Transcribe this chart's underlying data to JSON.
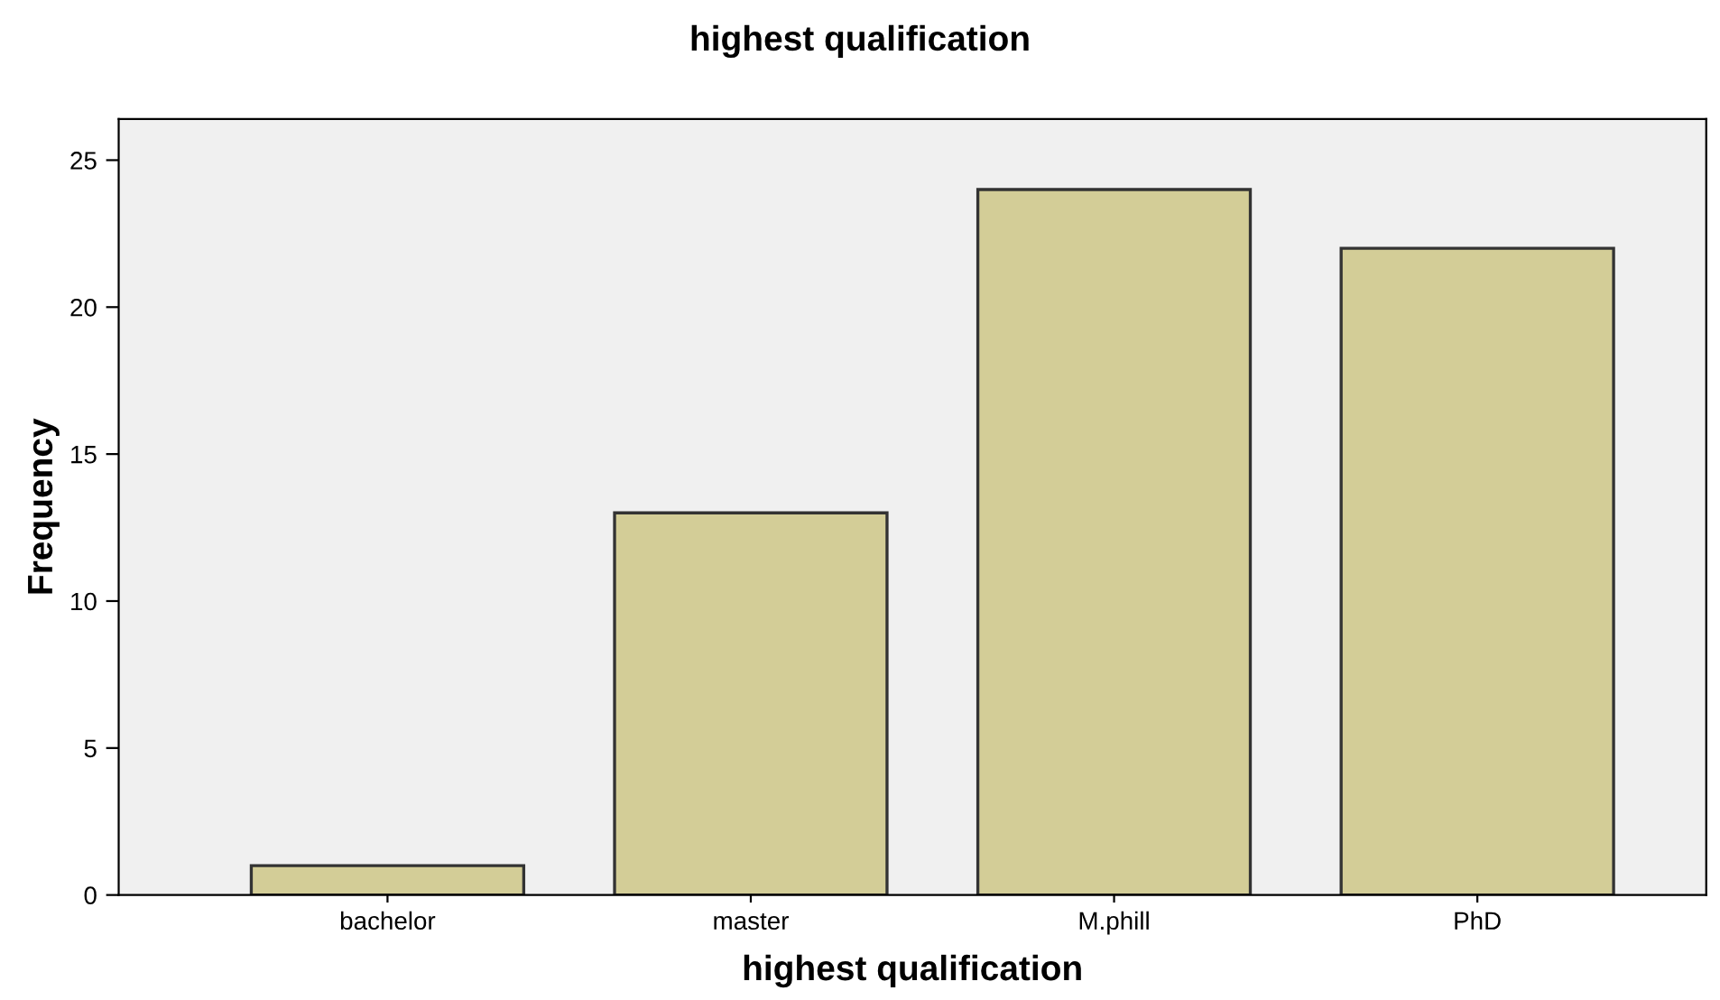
{
  "chart_data": {
    "type": "bar",
    "title": "highest qualification",
    "xlabel": "highest qualification",
    "ylabel": "Frequency",
    "categories": [
      "bachelor",
      "master",
      "M.phill",
      "PhD"
    ],
    "values": [
      1,
      13,
      24,
      22
    ],
    "color": "#d3cd97",
    "ylim": [
      0,
      26.4
    ],
    "yticks": [
      0,
      5,
      10,
      15,
      20,
      25
    ],
    "grid": false,
    "legend": false
  }
}
